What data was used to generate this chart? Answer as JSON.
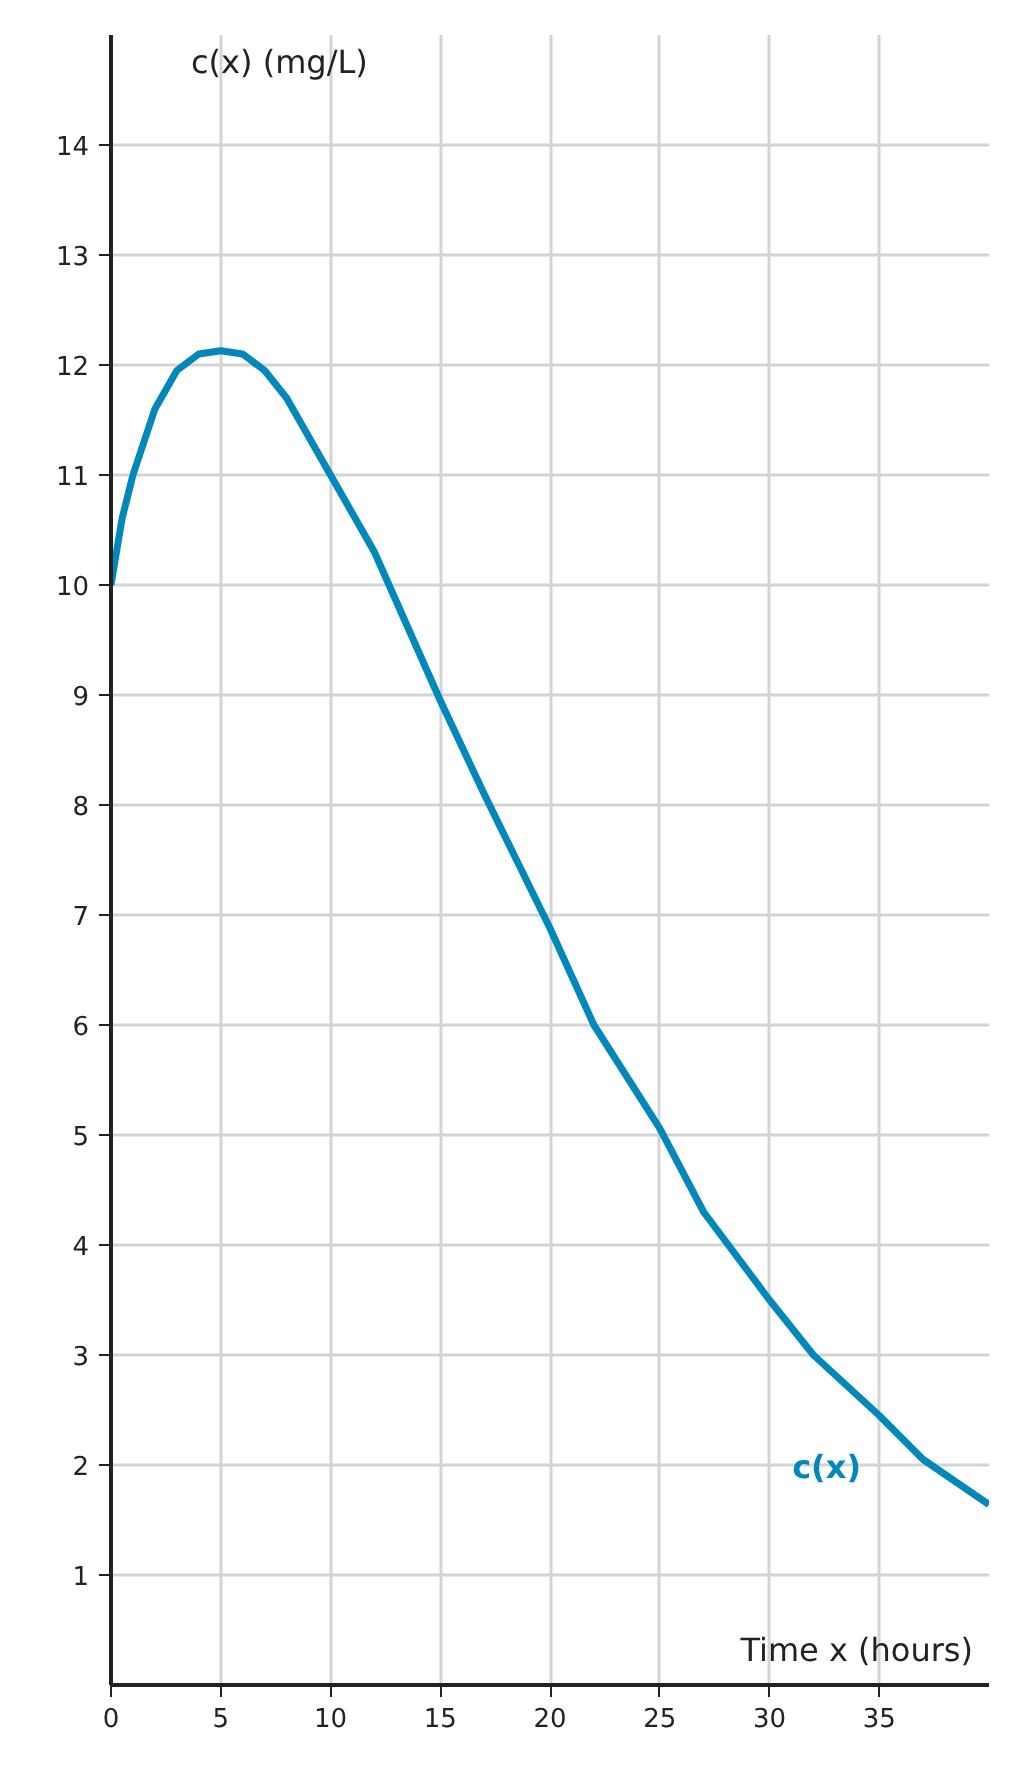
{
  "chart_data": {
    "type": "line",
    "xlabel": "Time x (hours)",
    "ylabel": "c(x) (mg/L)",
    "x": [
      0,
      0.5,
      1,
      2,
      3,
      4,
      5,
      6,
      7,
      8,
      10,
      12,
      15,
      17,
      20,
      22,
      25,
      27,
      30,
      32,
      35,
      37,
      40
    ],
    "series": [
      {
        "name": "c(x)",
        "color": "#0088bb",
        "values": [
          10,
          10.6,
          11.0,
          11.6,
          11.95,
          12.1,
          12.13,
          12.1,
          11.95,
          11.7,
          11.0,
          10.3,
          8.95,
          8.1,
          6.88,
          6.0,
          5.06,
          4.3,
          3.5,
          3.0,
          2.45,
          2.05,
          1.64
        ]
      }
    ],
    "xlim": [
      0,
      40
    ],
    "ylim": [
      0,
      15
    ],
    "xticks": [
      0,
      5,
      10,
      15,
      20,
      25,
      30,
      35
    ],
    "yticks": [
      1,
      2,
      3,
      4,
      5,
      6,
      7,
      8,
      9,
      10,
      11,
      12,
      13,
      14
    ],
    "grid": true,
    "line_style": "solid",
    "marker": "none"
  }
}
